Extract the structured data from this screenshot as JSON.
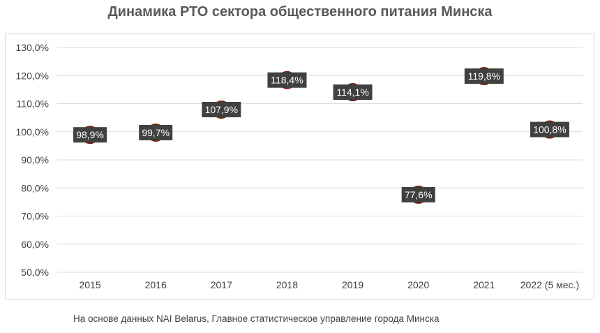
{
  "chart_data": {
    "type": "scatter",
    "title": "Динамика РТО сектора общественного питания Минска",
    "xlabel": "",
    "ylabel": "",
    "categories": [
      "2015",
      "2016",
      "2017",
      "2018",
      "2019",
      "2020",
      "2021",
      "2022 (5 мес.)"
    ],
    "values": [
      98.9,
      99.7,
      107.9,
      118.4,
      114.1,
      77.6,
      119.8,
      100.8
    ],
    "data_labels": [
      "98,9%",
      "99,7%",
      "107,9%",
      "118,4%",
      "114,1%",
      "77,6%",
      "119,8%",
      "100,8%"
    ],
    "ylim": [
      50,
      130
    ],
    "yticks": [
      50,
      60,
      70,
      80,
      90,
      100,
      110,
      120,
      130
    ],
    "ytick_labels": [
      "50,0%",
      "60,0%",
      "70,0%",
      "80,0%",
      "90,0%",
      "100,0%",
      "110,0%",
      "120,0%",
      "130,0%"
    ],
    "grid": true,
    "legend": "none",
    "colors": {
      "marker_fill": "#c0392b",
      "marker_edge": "#7b1f0f",
      "label_box": "#404040",
      "grid": "#d9d9d9"
    }
  },
  "source_note": "На основе данных NAI Belarus, Главное статистическое управление города Минска"
}
